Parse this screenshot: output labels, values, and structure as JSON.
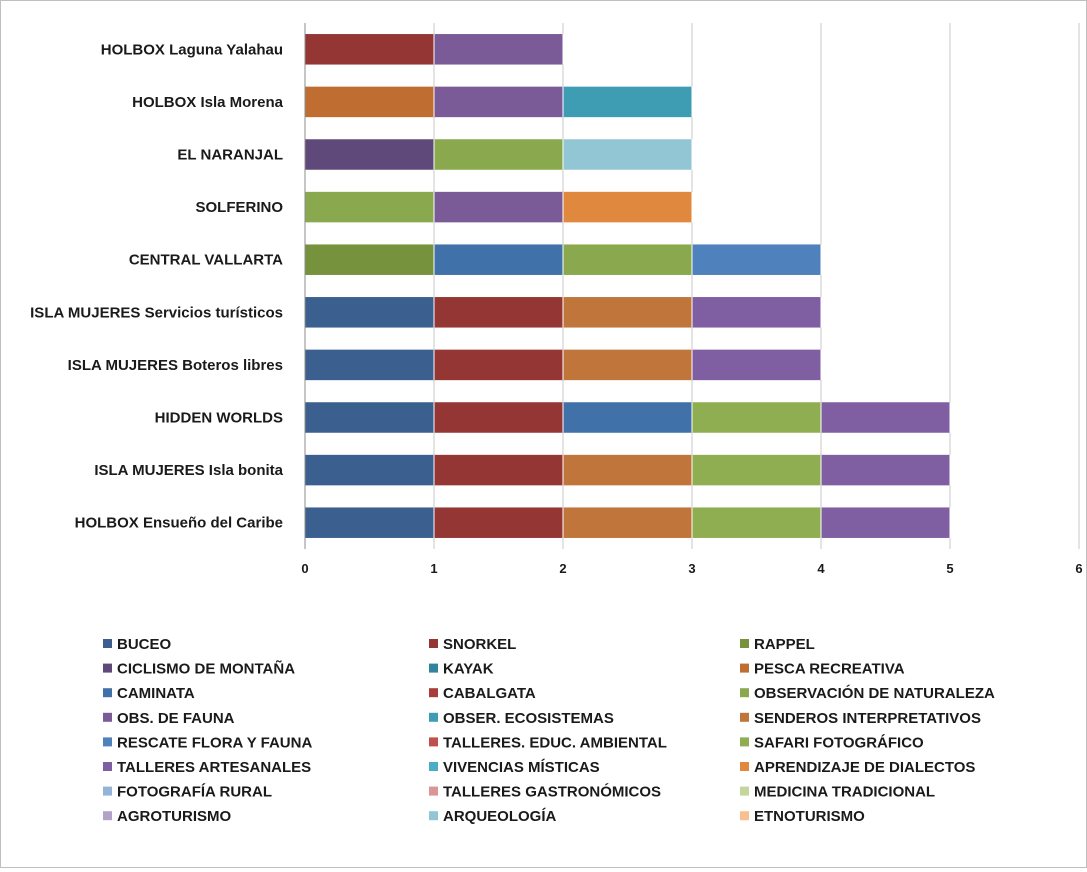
{
  "chart_data": {
    "type": "bar",
    "orientation": "horizontal",
    "stacked": true,
    "title": "",
    "xlabel": "",
    "ylabel": "",
    "xlim": [
      0,
      6
    ],
    "x_ticks": [
      "0",
      "1",
      "2",
      "3",
      "4",
      "5",
      "6"
    ],
    "grid": "vertical",
    "legend_position": "bottom",
    "categories": [
      "HOLBOX Laguna Yalahau",
      "HOLBOX Isla Morena",
      "EL NARANJAL",
      "SOLFERINO",
      "CENTRAL VALLARTA",
      "ISLA MUJERES Servicios turísticos",
      "ISLA MUJERES Boteros libres",
      "HIDDEN WORLDS",
      "ISLA MUJERES  Isla bonita",
      "HOLBOX Ensueño del Caribe"
    ],
    "series": [
      {
        "name": "BUCEO",
        "color": "#3b5f8f",
        "values": [
          0,
          0,
          0,
          0,
          0,
          1,
          1,
          1,
          1,
          1
        ]
      },
      {
        "name": "SNORKEL",
        "color": "#943634",
        "values": [
          1,
          0,
          0,
          0,
          0,
          1,
          1,
          1,
          1,
          1
        ]
      },
      {
        "name": "RAPPEL",
        "color": "#76923c",
        "values": [
          0,
          0,
          0,
          0,
          1,
          0,
          0,
          0,
          0,
          0
        ]
      },
      {
        "name": "CICLISMO DE MONTAÑA",
        "color": "#5f497a",
        "values": [
          0,
          0,
          1,
          0,
          0,
          0,
          0,
          0,
          0,
          0
        ]
      },
      {
        "name": "KAYAK",
        "color": "#31849b",
        "values": [
          0,
          0,
          0,
          0,
          0,
          0,
          0,
          0,
          0,
          0
        ]
      },
      {
        "name": "PESCA RECREATIVA",
        "color": "#c06d31",
        "values": [
          0,
          1,
          0,
          0,
          0,
          0,
          0,
          0,
          0,
          0
        ]
      },
      {
        "name": "CAMINATA",
        "color": "#4071a8",
        "values": [
          0,
          0,
          0,
          0,
          1,
          0,
          0,
          1,
          0,
          0
        ]
      },
      {
        "name": "CABALGATA",
        "color": "#a83c3a",
        "values": [
          0,
          0,
          0,
          0,
          0,
          0,
          0,
          0,
          0,
          0
        ]
      },
      {
        "name": "OBSERVACIÓN DE NATURALEZA",
        "color": "#8aa84e",
        "values": [
          0,
          0,
          1,
          1,
          1,
          0,
          0,
          0,
          0,
          0
        ]
      },
      {
        "name": "OBS. DE FAUNA",
        "color": "#7a5b98",
        "values": [
          1,
          1,
          0,
          1,
          0,
          0,
          0,
          0,
          0,
          0
        ]
      },
      {
        "name": "OBSER. ECOSISTEMAS",
        "color": "#3e9db3",
        "values": [
          0,
          1,
          0,
          0,
          0,
          0,
          0,
          0,
          0,
          0
        ]
      },
      {
        "name": "SENDEROS INTERPRETATIVOS",
        "color": "#c0763a",
        "values": [
          0,
          0,
          0,
          0,
          0,
          1,
          1,
          0,
          1,
          1
        ]
      },
      {
        "name": "RESCATE FLORA Y FAUNA",
        "color": "#4f81bd",
        "values": [
          0,
          0,
          0,
          0,
          1,
          0,
          0,
          0,
          0,
          0
        ]
      },
      {
        "name": "TALLERES. EDUC. AMBIENTAL",
        "color": "#c0504d",
        "values": [
          0,
          0,
          0,
          0,
          0,
          0,
          0,
          0,
          0,
          0
        ]
      },
      {
        "name": "SAFARI FOTOGRÁFICO",
        "color": "#8fae52",
        "values": [
          0,
          0,
          0,
          0,
          0,
          0,
          0,
          1,
          1,
          1
        ]
      },
      {
        "name": "TALLERES ARTESANALES",
        "color": "#7f5fa2",
        "values": [
          0,
          0,
          0,
          0,
          0,
          1,
          1,
          1,
          1,
          1
        ]
      },
      {
        "name": "VIVENCIAS MÍSTICAS",
        "color": "#4bacc6",
        "values": [
          0,
          0,
          0,
          0,
          0,
          0,
          0,
          0,
          0,
          0
        ]
      },
      {
        "name": "APRENDIZAJE DE DIALECTOS",
        "color": "#e0893e",
        "values": [
          0,
          0,
          0,
          1,
          0,
          0,
          0,
          0,
          0,
          0
        ]
      },
      {
        "name": "FOTOGRAFÍA RURAL",
        "color": "#95b3d7",
        "values": [
          0,
          0,
          0,
          0,
          0,
          0,
          0,
          0,
          0,
          0
        ]
      },
      {
        "name": "TALLERES GASTRONÓMICOS",
        "color": "#d99694",
        "values": [
          0,
          0,
          0,
          0,
          0,
          0,
          0,
          0,
          0,
          0
        ]
      },
      {
        "name": "MEDICINA TRADICIONAL",
        "color": "#c3d69b",
        "values": [
          0,
          0,
          0,
          0,
          0,
          0,
          0,
          0,
          0,
          0
        ]
      },
      {
        "name": "AGROTURISMO",
        "color": "#b3a2c7",
        "values": [
          0,
          0,
          0,
          0,
          0,
          0,
          0,
          0,
          0,
          0
        ]
      },
      {
        "name": "ARQUEOLOGÍA",
        "color": "#93c6d4",
        "values": [
          0,
          0,
          1,
          0,
          0,
          0,
          0,
          0,
          0,
          0
        ]
      },
      {
        "name": "ETNOTURISMO",
        "color": "#fabf8f",
        "values": [
          0,
          0,
          0,
          0,
          0,
          0,
          0,
          0,
          0,
          0
        ]
      }
    ]
  }
}
